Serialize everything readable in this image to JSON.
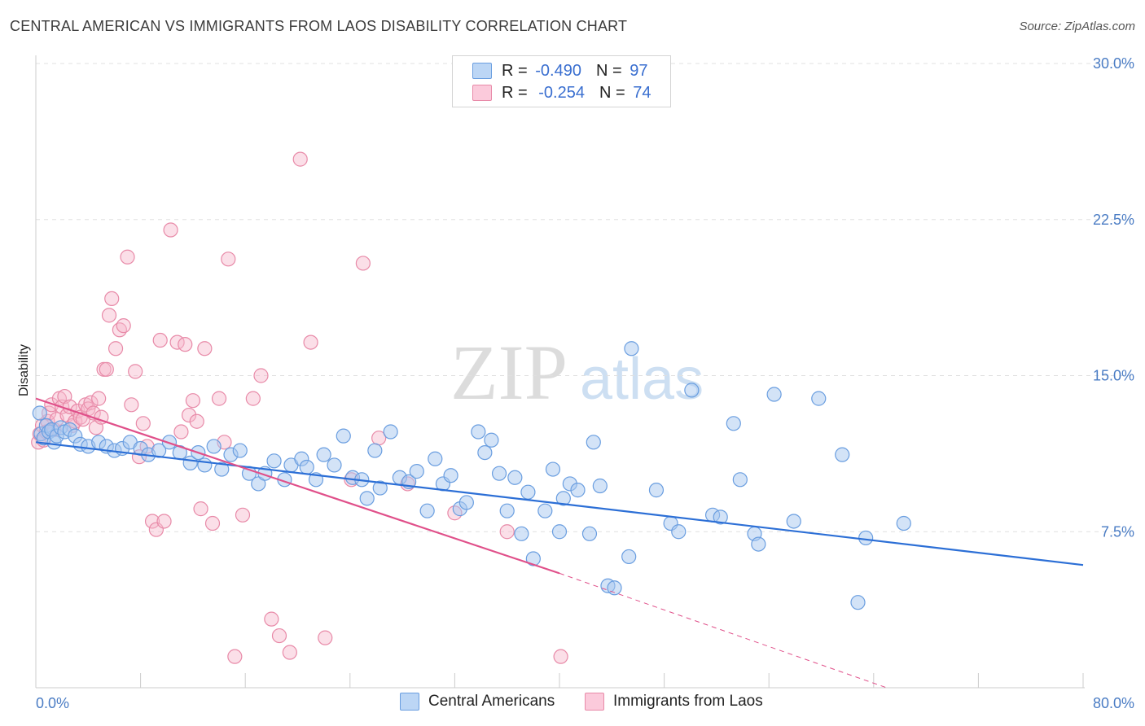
{
  "title": "CENTRAL AMERICAN VS IMMIGRANTS FROM LAOS DISABILITY CORRELATION CHART",
  "source": "Source: ZipAtlas.com",
  "watermark": {
    "left": "ZIP",
    "right": "atlas"
  },
  "legend": {
    "rows": [
      {
        "r_label": "R =",
        "r_value": "-0.490",
        "n_label": "N =",
        "n_value": "97"
      },
      {
        "r_label": "R =",
        "r_value": "-0.254",
        "n_label": "N =",
        "n_value": "74"
      }
    ]
  },
  "bottom_legend": [
    "Central Americans",
    "Immigrants from Laos"
  ],
  "colors": {
    "blue_fill": "#a8c8f0",
    "blue_stroke": "#6a9ee0",
    "blue_line": "#2c6fd6",
    "pink_fill": "#f7b8cc",
    "pink_stroke": "#e88aa8",
    "pink_line": "#e0508a",
    "tick_text": "#4a7cc4",
    "grid": "#e0e0e0"
  },
  "chart_data": {
    "type": "scatter",
    "ylabel": "Disability",
    "xlim": [
      0,
      80
    ],
    "ylim": [
      0,
      30
    ],
    "y_ticks": [
      {
        "value": 7.5,
        "label": "7.5%"
      },
      {
        "value": 15.0,
        "label": "15.0%"
      },
      {
        "value": 22.5,
        "label": "22.5%"
      },
      {
        "value": 30.0,
        "label": "30.0%"
      }
    ],
    "x_tick_labels": [
      {
        "value": 0,
        "label": "0.0%"
      },
      {
        "value": 80,
        "label": "80.0%"
      }
    ],
    "x_minor_ticks": [
      8,
      16,
      24,
      32,
      40,
      48,
      56,
      64,
      72,
      80
    ],
    "grid": true,
    "series": [
      {
        "name": "Central Americans",
        "color": "blue",
        "trend": {
          "x": [
            0,
            80
          ],
          "y": [
            11.8,
            5.9
          ]
        },
        "points": [
          [
            0.3,
            13.2
          ],
          [
            0.4,
            12.2
          ],
          [
            0.6,
            12.0
          ],
          [
            0.8,
            12.6
          ],
          [
            1.0,
            12.3
          ],
          [
            1.2,
            12.4
          ],
          [
            1.4,
            11.8
          ],
          [
            1.6,
            12.1
          ],
          [
            1.9,
            12.5
          ],
          [
            2.2,
            12.3
          ],
          [
            2.6,
            12.4
          ],
          [
            3.0,
            12.1
          ],
          [
            3.4,
            11.7
          ],
          [
            4.0,
            11.6
          ],
          [
            4.8,
            11.8
          ],
          [
            5.4,
            11.6
          ],
          [
            6.0,
            11.4
          ],
          [
            6.6,
            11.5
          ],
          [
            7.2,
            11.8
          ],
          [
            8.0,
            11.5
          ],
          [
            8.6,
            11.2
          ],
          [
            9.4,
            11.4
          ],
          [
            10.2,
            11.8
          ],
          [
            11.0,
            11.3
          ],
          [
            11.8,
            10.8
          ],
          [
            12.4,
            11.3
          ],
          [
            12.9,
            10.7
          ],
          [
            13.6,
            11.6
          ],
          [
            14.2,
            10.5
          ],
          [
            14.9,
            11.2
          ],
          [
            15.6,
            11.4
          ],
          [
            16.3,
            10.3
          ],
          [
            17.0,
            9.8
          ],
          [
            17.5,
            10.3
          ],
          [
            18.2,
            10.9
          ],
          [
            19.0,
            10.0
          ],
          [
            19.5,
            10.7
          ],
          [
            20.3,
            11.0
          ],
          [
            20.7,
            10.6
          ],
          [
            21.4,
            10.0
          ],
          [
            22.0,
            11.2
          ],
          [
            22.8,
            10.7
          ],
          [
            23.5,
            12.1
          ],
          [
            24.2,
            10.1
          ],
          [
            24.9,
            10.0
          ],
          [
            25.3,
            9.1
          ],
          [
            25.9,
            11.4
          ],
          [
            26.3,
            9.6
          ],
          [
            27.1,
            12.3
          ],
          [
            27.8,
            10.1
          ],
          [
            28.5,
            9.9
          ],
          [
            29.1,
            10.4
          ],
          [
            29.9,
            8.5
          ],
          [
            30.5,
            11.0
          ],
          [
            31.1,
            9.8
          ],
          [
            31.7,
            10.2
          ],
          [
            32.4,
            8.6
          ],
          [
            32.9,
            8.9
          ],
          [
            33.8,
            12.3
          ],
          [
            34.3,
            11.3
          ],
          [
            34.8,
            11.9
          ],
          [
            35.4,
            10.3
          ],
          [
            36.0,
            8.5
          ],
          [
            36.6,
            10.1
          ],
          [
            37.1,
            7.4
          ],
          [
            37.6,
            9.4
          ],
          [
            38.0,
            6.2
          ],
          [
            38.9,
            8.5
          ],
          [
            39.5,
            10.5
          ],
          [
            40.0,
            7.5
          ],
          [
            40.3,
            9.1
          ],
          [
            40.8,
            9.8
          ],
          [
            41.4,
            9.5
          ],
          [
            42.3,
            7.4
          ],
          [
            42.6,
            11.8
          ],
          [
            43.1,
            9.7
          ],
          [
            43.7,
            4.9
          ],
          [
            44.2,
            4.8
          ],
          [
            45.3,
            6.3
          ],
          [
            45.5,
            16.3
          ],
          [
            47.4,
            9.5
          ],
          [
            48.5,
            7.9
          ],
          [
            49.1,
            7.5
          ],
          [
            50.1,
            14.3
          ],
          [
            51.7,
            8.3
          ],
          [
            52.3,
            8.2
          ],
          [
            53.3,
            12.7
          ],
          [
            53.8,
            10.0
          ],
          [
            54.9,
            7.4
          ],
          [
            55.2,
            6.9
          ],
          [
            56.4,
            14.1
          ],
          [
            57.9,
            8.0
          ],
          [
            59.8,
            13.9
          ],
          [
            61.6,
            11.2
          ],
          [
            62.8,
            4.1
          ],
          [
            63.4,
            7.2
          ],
          [
            66.3,
            7.9
          ]
        ]
      },
      {
        "name": "Immigrants from Laos",
        "color": "pink",
        "trend": {
          "x": [
            0,
            40
          ],
          "y": [
            13.9,
            5.5
          ]
        },
        "trend_dashed": {
          "x": [
            40,
            65
          ],
          "y": [
            5.5,
            0.0
          ]
        },
        "points": [
          [
            0.2,
            11.8
          ],
          [
            0.3,
            12.2
          ],
          [
            0.5,
            12.6
          ],
          [
            0.6,
            11.9
          ],
          [
            0.8,
            12.3
          ],
          [
            0.9,
            12.8
          ],
          [
            1.0,
            13.2
          ],
          [
            1.2,
            13.6
          ],
          [
            1.4,
            12.4
          ],
          [
            1.6,
            12.9
          ],
          [
            1.8,
            13.9
          ],
          [
            2.0,
            13.5
          ],
          [
            2.2,
            14.0
          ],
          [
            2.4,
            13.1
          ],
          [
            2.6,
            13.5
          ],
          [
            2.8,
            12.6
          ],
          [
            3.0,
            12.8
          ],
          [
            3.2,
            13.3
          ],
          [
            3.4,
            13.0
          ],
          [
            3.6,
            12.9
          ],
          [
            3.8,
            13.6
          ],
          [
            4.0,
            13.4
          ],
          [
            4.2,
            13.7
          ],
          [
            4.4,
            13.2
          ],
          [
            4.6,
            12.5
          ],
          [
            4.8,
            13.9
          ],
          [
            5.0,
            13.0
          ],
          [
            5.2,
            15.3
          ],
          [
            5.4,
            15.3
          ],
          [
            5.6,
            17.9
          ],
          [
            5.8,
            18.7
          ],
          [
            6.1,
            16.3
          ],
          [
            6.4,
            17.2
          ],
          [
            6.7,
            17.4
          ],
          [
            7.0,
            20.7
          ],
          [
            7.3,
            13.6
          ],
          [
            7.6,
            15.2
          ],
          [
            7.9,
            11.1
          ],
          [
            8.2,
            12.7
          ],
          [
            8.5,
            11.6
          ],
          [
            8.9,
            8.0
          ],
          [
            9.2,
            7.6
          ],
          [
            9.5,
            16.7
          ],
          [
            9.8,
            8.0
          ],
          [
            10.3,
            22.0
          ],
          [
            10.8,
            16.6
          ],
          [
            11.1,
            12.3
          ],
          [
            11.4,
            16.5
          ],
          [
            11.7,
            13.1
          ],
          [
            12.0,
            13.8
          ],
          [
            12.3,
            12.8
          ],
          [
            12.6,
            8.6
          ],
          [
            12.9,
            16.3
          ],
          [
            13.5,
            7.9
          ],
          [
            14.0,
            13.9
          ],
          [
            14.4,
            11.8
          ],
          [
            14.7,
            20.6
          ],
          [
            15.2,
            1.5
          ],
          [
            15.8,
            8.3
          ],
          [
            16.6,
            13.9
          ],
          [
            17.2,
            15.0
          ],
          [
            18.0,
            3.3
          ],
          [
            18.6,
            2.5
          ],
          [
            19.4,
            1.7
          ],
          [
            20.2,
            25.4
          ],
          [
            21.0,
            16.6
          ],
          [
            22.1,
            2.4
          ],
          [
            24.1,
            10.0
          ],
          [
            25.0,
            20.4
          ],
          [
            26.2,
            12.0
          ],
          [
            28.4,
            9.8
          ],
          [
            32.0,
            8.4
          ],
          [
            36.0,
            7.5
          ],
          [
            40.1,
            1.5
          ]
        ]
      }
    ]
  }
}
